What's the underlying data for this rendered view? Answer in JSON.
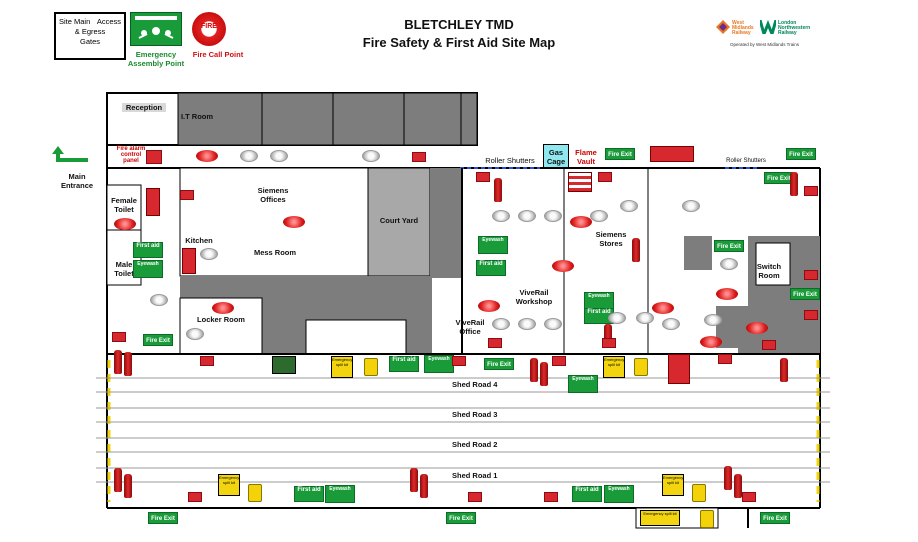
{
  "header": {
    "title_line1": "BLETCHLEY TMD",
    "title_line2": "Fire Safety & First Aid Site Map"
  },
  "legend": {
    "site_main_label": "Site Main",
    "access_label": "Access",
    "egress_label": "& Egress",
    "gates_label": "Gates",
    "assembly_point_label": "Emergency Assembly Point",
    "fire_call_point_label": "Fire Call Point",
    "fire_call_point_sign_text": "FIRE"
  },
  "logos": {
    "wmr_name": "West Midlands Railway",
    "lnwr_name": "London Northwestern Railway",
    "operated_by": "Operated by West Midlands Trains"
  },
  "entrance": {
    "label": "Main Entrance"
  },
  "rooms": {
    "reception": "Reception",
    "it_room": "I.T Room",
    "fire_alarm_panel": "Fire alarm control panel",
    "siemens_offices": "Siemens Offices",
    "court_yard": "Court Yard",
    "female_toilet": "Female Toilet",
    "male_toilet": "Male Toilet",
    "kitchen": "Kitchen",
    "mess_room": "Mess Room",
    "locker_room": "Locker Room",
    "roller_shutters_1": "Roller Shutters",
    "roller_shutters_2": "Roller Shutters",
    "gas_cage": "Gas Cage",
    "flame_vault": "Flame Vault",
    "siemens_stores": "Siemens Stores",
    "viverail_workshop": "ViveRail Workshop",
    "viverail_office": "ViveRail Office",
    "switch_room": "Switch Room"
  },
  "roads": {
    "road4": "Shed Road 4",
    "road3": "Shed Road 3",
    "road2": "Shed Road 2",
    "road1": "Shed Road 1"
  },
  "signs": {
    "fire_exit": "Fire Exit",
    "first_aid": "First aid",
    "eyewash": "Eyewash",
    "spill_kit": "Emergency spill kit"
  },
  "colors": {
    "building_grey": "#7d7d7d",
    "courtyard_grey": "#a8a8a8",
    "gas_cage": "#8fe8f0",
    "sign_green": "#1a9b3a",
    "fire_red": "#d7282f",
    "shutter_blue": "#2a4fd6",
    "spill_yellow": "#f2d50f"
  }
}
